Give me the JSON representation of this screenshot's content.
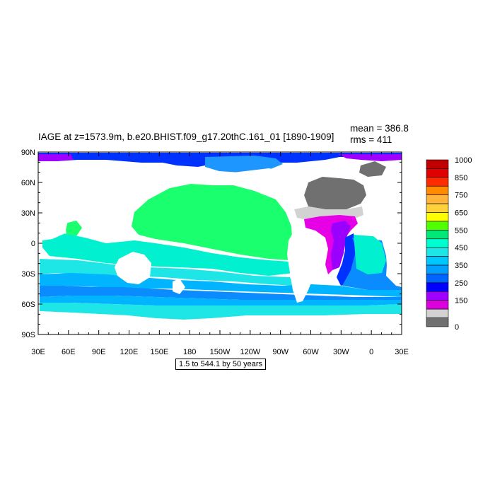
{
  "title": "IAGE at z=1573.9m, b.e20.BHIST.f09_g17.20thC.161_01 [1890-1909]",
  "stats": {
    "mean": "mean = 386.8",
    "rms": "rms = 411"
  },
  "info_box": "1.5 to 544.1 by 50 years",
  "lat_ticks": [
    "90N",
    "60N",
    "30N",
    "0",
    "30S",
    "60S",
    "90S"
  ],
  "lon_ticks": [
    "30E",
    "60E",
    "90E",
    "120E",
    "150E",
    "180",
    "150W",
    "120W",
    "90W",
    "60W",
    "30W",
    "0",
    "30E"
  ],
  "colorbar": {
    "labels": [
      "1000",
      "850",
      "750",
      "650",
      "550",
      "450",
      "350",
      "250",
      "150",
      "0"
    ],
    "colors": [
      "#c00000",
      "#e00000",
      "#ff2a00",
      "#ff8c00",
      "#ffb43c",
      "#ffd23c",
      "#ffff00",
      "#50ff00",
      "#00e878",
      "#00ffd0",
      "#1ee6e6",
      "#00c8ff",
      "#00a0ff",
      "#0064ff",
      "#0000ff",
      "#a000ff",
      "#dc00dc",
      "#d2d2d2",
      "#707070"
    ]
  },
  "colors": {
    "land": "#ffffff",
    "pacific": "#19ff6e",
    "tropical_band": "#00f0d0",
    "southern_light": "#1ee6e6",
    "southern_mid": "#00b4ff",
    "southern_deep": "#0a8cff",
    "arctic": "#0032ff",
    "north_atlantic_gray": "#6e6e6e",
    "light_gray": "#d2d2d2",
    "magenta": "#e600e6",
    "purple": "#9b00ff"
  }
}
